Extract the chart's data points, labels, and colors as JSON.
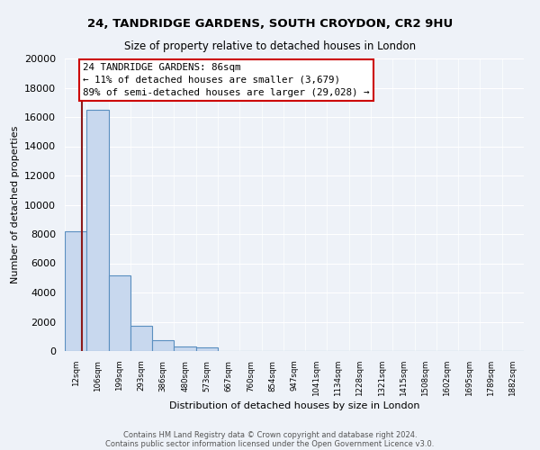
{
  "title1": "24, TANDRIDGE GARDENS, SOUTH CROYDON, CR2 9HU",
  "title2": "Size of property relative to detached houses in London",
  "xlabel": "Distribution of detached houses by size in London",
  "ylabel": "Number of detached properties",
  "bar_labels": [
    "12sqm",
    "106sqm",
    "199sqm",
    "293sqm",
    "386sqm",
    "480sqm",
    "573sqm",
    "667sqm",
    "760sqm",
    "854sqm",
    "947sqm",
    "1041sqm",
    "1134sqm",
    "1228sqm",
    "1321sqm",
    "1415sqm",
    "1508sqm",
    "1602sqm",
    "1695sqm",
    "1789sqm",
    "1882sqm"
  ],
  "bar_values": [
    8200,
    16500,
    5200,
    1750,
    750,
    300,
    250,
    0,
    0,
    0,
    0,
    0,
    0,
    0,
    0,
    0,
    0,
    0,
    0,
    0,
    0
  ],
  "bar_fill_color": "#c8d8ee",
  "bar_edge_color": "#5a8fc0",
  "annotation_line1": "24 TANDRIDGE GARDENS: 86sqm",
  "annotation_line2": "← 11% of detached houses are smaller (3,679)",
  "annotation_line3": "89% of semi-detached houses are larger (29,028) →",
  "annotation_box_color": "white",
  "annotation_box_edge_color": "#cc0000",
  "ylim": [
    0,
    20000
  ],
  "yticks": [
    0,
    2000,
    4000,
    6000,
    8000,
    10000,
    12000,
    14000,
    16000,
    18000,
    20000
  ],
  "footer1": "Contains HM Land Registry data © Crown copyright and database right 2024.",
  "footer2": "Contains public sector information licensed under the Open Government Licence v3.0.",
  "bg_color": "#eef2f8",
  "grid_color": "#ffffff",
  "red_line_color": "#8b1a1a"
}
